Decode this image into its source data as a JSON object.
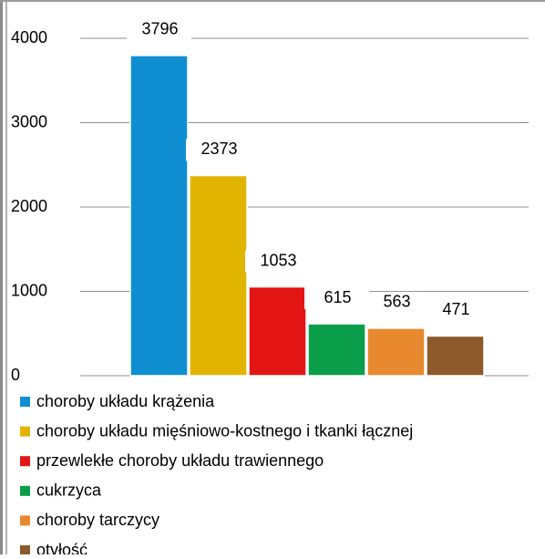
{
  "chart_data": {
    "type": "bar",
    "categories": [
      null
    ],
    "series": [
      {
        "name": "choroby układu krążenia",
        "color": "#0f8fd1",
        "values": [
          3796
        ]
      },
      {
        "name": "choroby układu mięśniowo-kostnego i tkanki łącznej",
        "color": "#e2b402",
        "values": [
          2373
        ]
      },
      {
        "name": "przewlekłe choroby układu trawiennego",
        "color": "#e31515",
        "values": [
          1053
        ]
      },
      {
        "name": "cukrzyca",
        "color": "#0a9e4a",
        "values": [
          615
        ]
      },
      {
        "name": "choroby tarczycy",
        "color": "#e8892f",
        "values": [
          563
        ]
      },
      {
        "name": "otyłość",
        "color": "#8e5a2c",
        "values": [
          471
        ]
      }
    ],
    "ylim": [
      0,
      4000
    ],
    "yticks": [
      0,
      1000,
      2000,
      3000,
      4000
    ],
    "grid": true,
    "legend": "bottom"
  }
}
